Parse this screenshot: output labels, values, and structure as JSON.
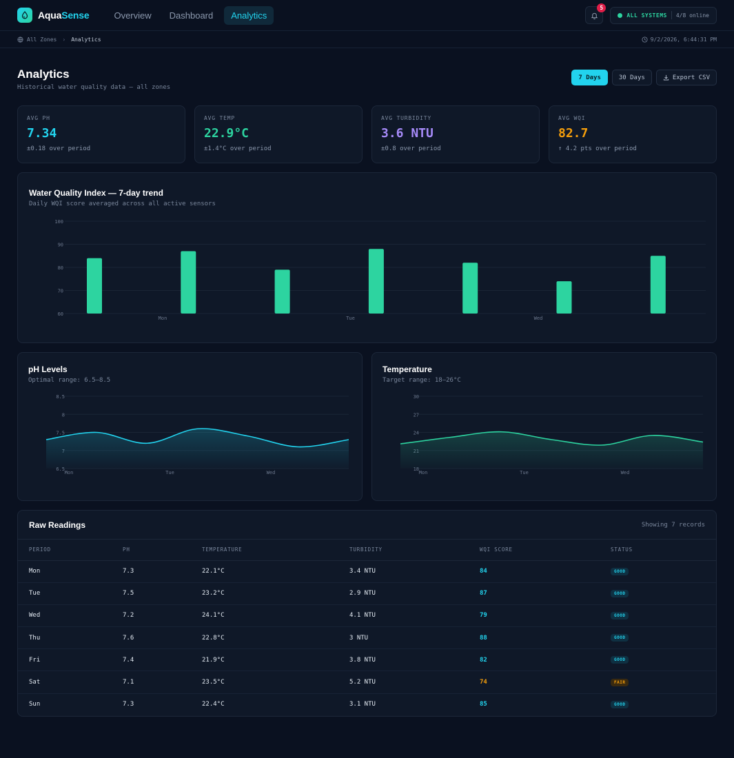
{
  "app": {
    "name_part1": "Aqua",
    "name_part2": "Sense"
  },
  "nav": {
    "tabs": [
      {
        "label": "Overview"
      },
      {
        "label": "Dashboard"
      },
      {
        "label": "Analytics",
        "active": true
      }
    ]
  },
  "notifications": {
    "count": "5"
  },
  "system": {
    "label": "ALL SYSTEMS",
    "online": "4/8 online"
  },
  "breadcrumb": {
    "root": "All Zones",
    "current": "Analytics",
    "timestamp": "9/2/2026, 6:44:31 PM"
  },
  "page": {
    "title": "Analytics",
    "subtitle": "Historical water quality data — all zones"
  },
  "actions": {
    "range_7": "7 Days",
    "range_30": "30 Days",
    "export": "Export CSV"
  },
  "stats": [
    {
      "label": "AVG PH",
      "value": "7.34",
      "delta": "±0.18 over period",
      "color": "#22d3ee"
    },
    {
      "label": "AVG TEMP",
      "value": "22.9°C",
      "delta": "±1.4°C over period",
      "color": "#2dd4a0"
    },
    {
      "label": "AVG TURBIDITY",
      "value": "3.6 NTU",
      "delta": "±0.8 over period",
      "color": "#a78bfa"
    },
    {
      "label": "AVG WQI",
      "value": "82.7",
      "delta": "↑ 4.2 pts over period",
      "color": "#f59e0b"
    }
  ],
  "wqi_panel": {
    "title": "Water Quality Index — 7-day trend",
    "subtitle": "Daily WQI score averaged across all active sensors"
  },
  "ph_panel": {
    "title": "pH Levels",
    "subtitle": "Optimal range: 6.5–8.5"
  },
  "temp_panel": {
    "title": "Temperature",
    "subtitle": "Target range: 18–26°C"
  },
  "chart_data": [
    {
      "type": "bar",
      "title": "Water Quality Index — 7-day trend",
      "categories": [
        "Mon",
        "Tue",
        "Wed",
        "Thu",
        "Fri",
        "Sat",
        "Sun"
      ],
      "tick_labels_shown": [
        "Mon",
        "Tue",
        "Wed"
      ],
      "values": [
        84,
        87,
        79,
        88,
        82,
        74,
        85
      ],
      "ylim": [
        60,
        100
      ],
      "yticks": [
        60,
        70,
        80,
        90,
        100
      ],
      "color": "#2dd4a0",
      "grid": true
    },
    {
      "type": "area",
      "title": "pH Levels",
      "x": [
        "Mon",
        "Tue",
        "Wed",
        "Thu",
        "Fri",
        "Sat",
        "Sun"
      ],
      "tick_labels_shown": [
        "Mon",
        "Tue",
        "Wed"
      ],
      "values": [
        7.3,
        7.5,
        7.2,
        7.6,
        7.4,
        7.1,
        7.3
      ],
      "ylim": [
        6.5,
        8.5
      ],
      "yticks": [
        6.5,
        7,
        7.5,
        8,
        8.5
      ],
      "color": "#22d3ee",
      "grid": true
    },
    {
      "type": "area",
      "title": "Temperature",
      "x": [
        "Mon",
        "Tue",
        "Wed",
        "Thu",
        "Fri",
        "Sat",
        "Sun"
      ],
      "tick_labels_shown": [
        "Mon",
        "Tue",
        "Wed"
      ],
      "values": [
        22.1,
        23.2,
        24.1,
        22.8,
        21.9,
        23.5,
        22.4
      ],
      "ylim": [
        18,
        30
      ],
      "yticks": [
        18,
        21,
        24,
        27,
        30
      ],
      "color": "#2dd4a0",
      "grid": true
    }
  ],
  "table": {
    "title": "Raw Readings",
    "count_label": "Showing 7 records",
    "columns": [
      "PERIOD",
      "PH",
      "TEMPERATURE",
      "TURBIDITY",
      "WQI SCORE",
      "STATUS"
    ],
    "rows": [
      {
        "period": "Mon",
        "ph": "7.3",
        "temp": "22.1°C",
        "turbidity": "3.4 NTU",
        "wqi": "84",
        "status": "GOOD"
      },
      {
        "period": "Tue",
        "ph": "7.5",
        "temp": "23.2°C",
        "turbidity": "2.9 NTU",
        "wqi": "87",
        "status": "GOOD"
      },
      {
        "period": "Wed",
        "ph": "7.2",
        "temp": "24.1°C",
        "turbidity": "4.1 NTU",
        "wqi": "79",
        "status": "GOOD"
      },
      {
        "period": "Thu",
        "ph": "7.6",
        "temp": "22.8°C",
        "turbidity": "3 NTU",
        "wqi": "88",
        "status": "GOOD"
      },
      {
        "period": "Fri",
        "ph": "7.4",
        "temp": "21.9°C",
        "turbidity": "3.8 NTU",
        "wqi": "82",
        "status": "GOOD"
      },
      {
        "period": "Sat",
        "ph": "7.1",
        "temp": "23.5°C",
        "turbidity": "5.2 NTU",
        "wqi": "74",
        "status": "FAIR"
      },
      {
        "period": "Sun",
        "ph": "7.3",
        "temp": "22.4°C",
        "turbidity": "3.1 NTU",
        "wqi": "85",
        "status": "GOOD"
      }
    ]
  }
}
